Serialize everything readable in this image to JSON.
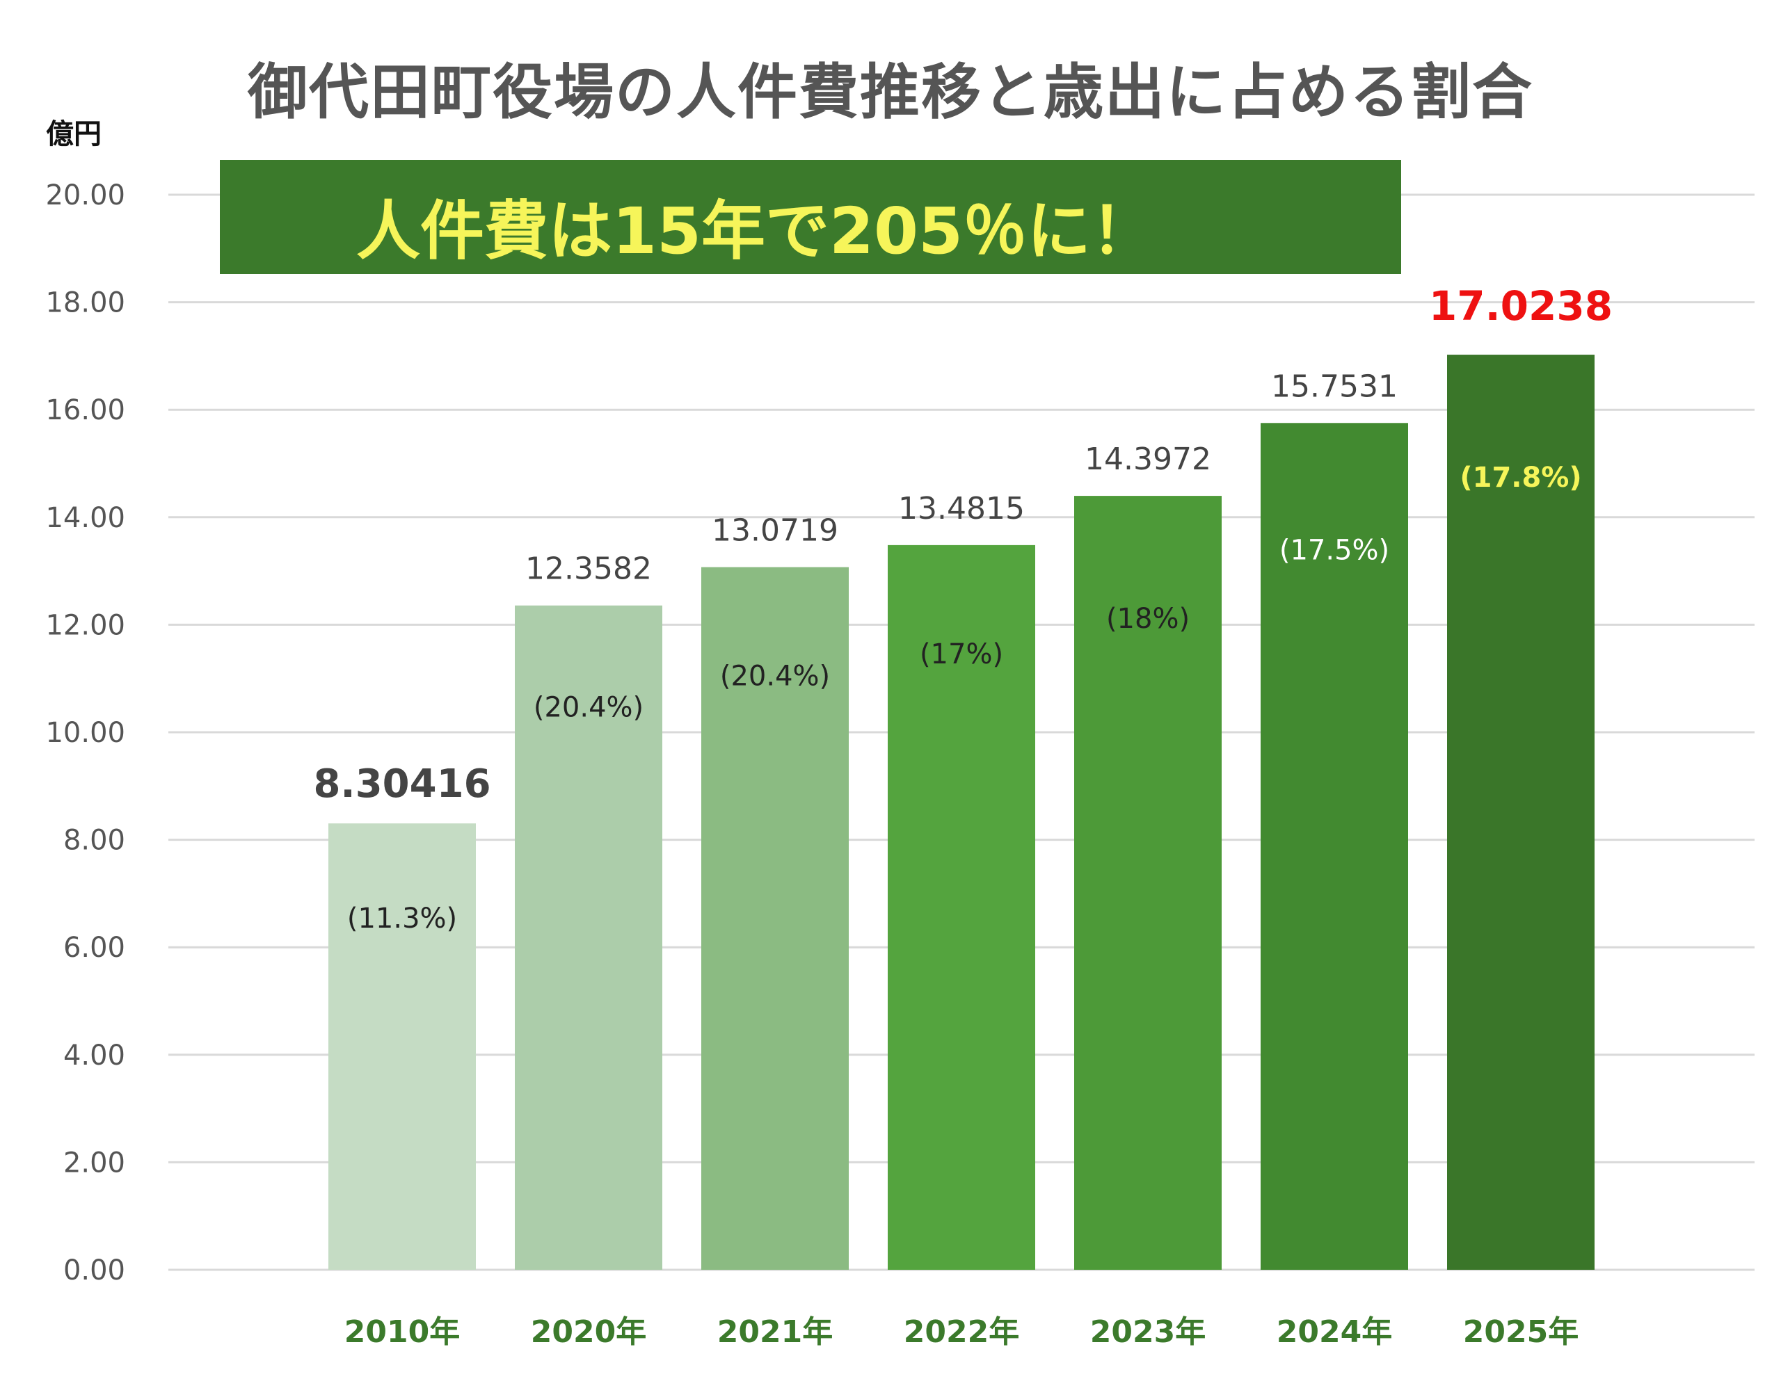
{
  "chart_data": {
    "type": "bar",
    "title": "御代田町役場の人件費推移と歳出に占める割合",
    "ylabel": "億円",
    "annotation": "人件費は15年で205％に！",
    "categories": [
      "2010年",
      "2020年",
      "2021年",
      "2022年",
      "2023年",
      "2024年",
      "2025年"
    ],
    "values": [
      8.30416,
      12.3582,
      13.0719,
      13.4815,
      14.3972,
      15.7531,
      17.0238
    ],
    "value_labels": [
      "8.30416",
      "12.3582",
      "13.0719",
      "13.4815",
      "14.3972",
      "15.7531",
      "17.0238"
    ],
    "share_labels": [
      "(11.3%)",
      "(20.4%)",
      "(20.4%)",
      "(17%)",
      "(18%)",
      "(17.5%)",
      "(17.8%)"
    ],
    "ylim": [
      0,
      20
    ],
    "yticks": [
      "0.00",
      "2.00",
      "4.00",
      "6.00",
      "8.00",
      "10.00",
      "12.00",
      "14.00",
      "16.00",
      "18.00",
      "20.00"
    ],
    "grid": true,
    "colors": {
      "bars": [
        "#c5dcc4",
        "#accdaa",
        "#8bbb82",
        "#54a43e",
        "#4d9a38",
        "#428a30",
        "#3a7629"
      ],
      "tick_label": "#555555",
      "category_label": "#3b7a2b",
      "value_label": "#444444",
      "highlight_value": "#ee1111",
      "share_label_dark": "#222222",
      "share_label_light": "#ffffff",
      "share_label_highlight": "#f6f55a",
      "gridline": "#d9d9d9"
    }
  }
}
